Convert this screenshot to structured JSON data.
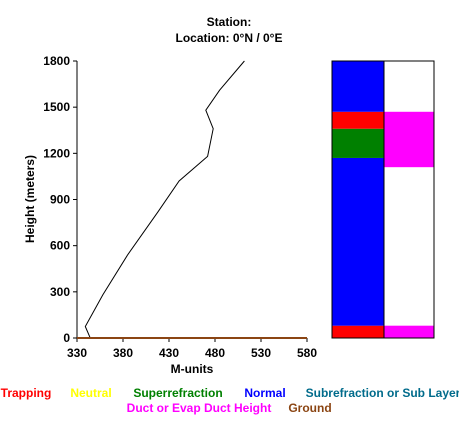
{
  "header": {
    "station_line": "Station:",
    "location_line": "Location:   0°N /   0°E"
  },
  "chart_data": {
    "type": "line",
    "xlabel": "M-units",
    "ylabel": "Height (meters)",
    "xlim": [
      330,
      580
    ],
    "ylim": [
      0,
      1800
    ],
    "x_ticks": [
      330,
      380,
      430,
      480,
      530,
      580
    ],
    "y_ticks": [
      0,
      300,
      600,
      900,
      1200,
      1500,
      1800
    ],
    "series": [
      {
        "color": "#000000",
        "points": [
          [
            344,
            5
          ],
          [
            339,
            75
          ],
          [
            358,
            280
          ],
          [
            385,
            540
          ],
          [
            418,
            820
          ],
          [
            441,
            1020
          ],
          [
            472,
            1180
          ],
          [
            478,
            1360
          ],
          [
            470,
            1480
          ],
          [
            485,
            1610
          ],
          [
            512,
            1800
          ]
        ]
      },
      {
        "color": "#8b4513",
        "points": [
          [
            330,
            0
          ],
          [
            580,
            0
          ]
        ]
      }
    ]
  },
  "layer_chart": {
    "ylim": [
      0,
      1800
    ],
    "left_column": [
      {
        "from": 0,
        "to": 80,
        "color": "#ff0000"
      },
      {
        "from": 80,
        "to": 1170,
        "color": "#0000ff"
      },
      {
        "from": 1170,
        "to": 1360,
        "color": "#008000"
      },
      {
        "from": 1360,
        "to": 1470,
        "color": "#ff0000"
      },
      {
        "from": 1470,
        "to": 1800,
        "color": "#0000ff"
      }
    ],
    "right_column": [
      {
        "from": 0,
        "to": 80,
        "color": "#ff00ff"
      },
      {
        "from": 1110,
        "to": 1470,
        "color": "#ff00ff"
      }
    ]
  },
  "legend": [
    {
      "label": "Trapping",
      "color": "#ff0000"
    },
    {
      "label": "Neutral",
      "color": "#ffff00"
    },
    {
      "label": "Superrefraction",
      "color": "#008000"
    },
    {
      "label": "Normal",
      "color": "#0000ff"
    },
    {
      "label": "Subrefraction or Sub Layer",
      "color": "#006b8b"
    },
    {
      "label": "Duct or Evap Duct Height",
      "color": "#ff00ff"
    },
    {
      "label": "Ground",
      "color": "#8b4513"
    }
  ]
}
